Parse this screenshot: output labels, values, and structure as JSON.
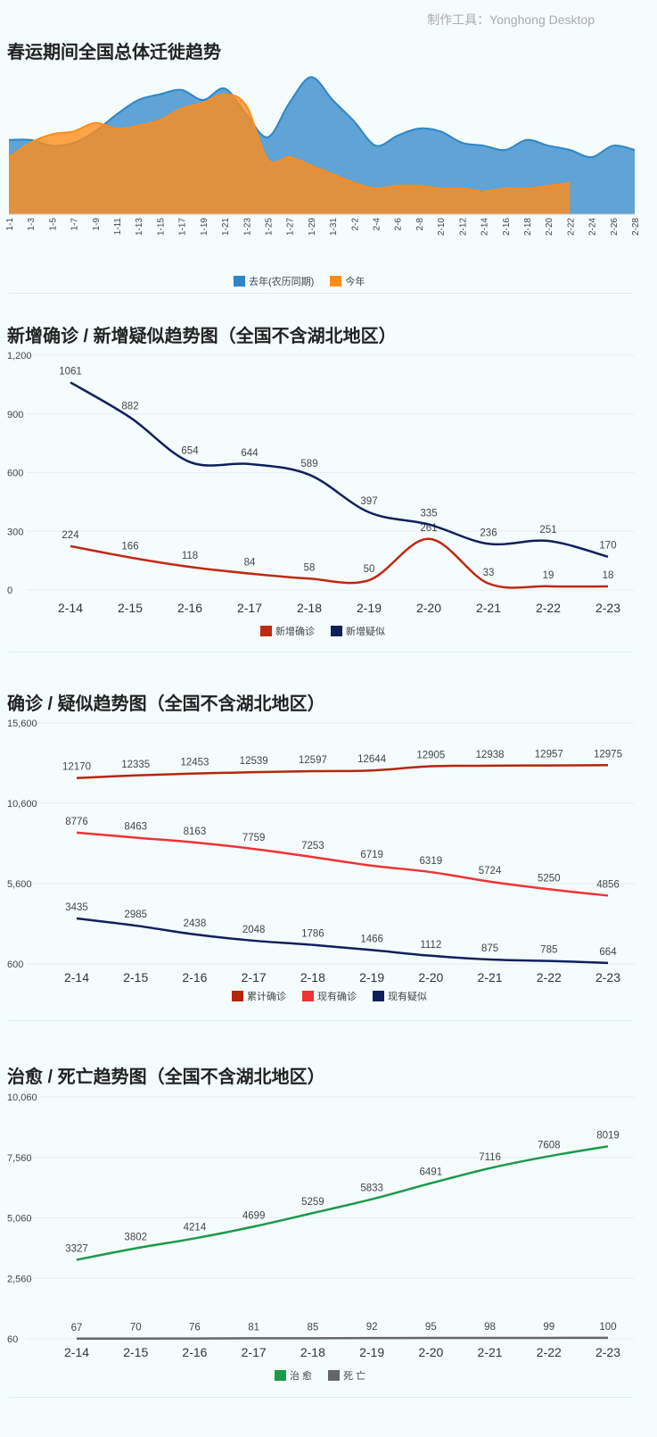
{
  "credit": "制作工具：Yonghong Desktop",
  "charts": [
    {
      "title": "春运期间全国总体迁徙趋势",
      "chart_data": {
        "type": "area",
        "categories": [
          "1-1",
          "1-3",
          "1-5",
          "1-7",
          "1-9",
          "1-11",
          "1-13",
          "1-15",
          "1-17",
          "1-19",
          "1-21",
          "1-23",
          "1-25",
          "1-27",
          "1-29",
          "1-31",
          "2-2",
          "2-4",
          "2-6",
          "2-8",
          "2-10",
          "2-12",
          "2-14",
          "2-16",
          "2-18",
          "2-20",
          "2-22",
          "2-24",
          "2-26",
          "2-28"
        ],
        "series": [
          {
            "name": "去年(农历同期)",
            "color": "#2e86c8",
            "values": [
              52,
              52,
              48,
              50,
              58,
              70,
              80,
              84,
              87,
              80,
              88,
              70,
              54,
              78,
              96,
              80,
              65,
              48,
              55,
              60,
              58,
              50,
              48,
              45,
              52,
              48,
              45,
              40,
              48,
              45
            ]
          },
          {
            "name": "今年",
            "color": "#ff8c1a",
            "values": [
              40,
              50,
              56,
              58,
              64,
              60,
              62,
              66,
              74,
              78,
              84,
              76,
              38,
              40,
              34,
              28,
              22,
              18,
              20,
              20,
              18,
              18,
              16,
              18,
              18,
              20,
              22,
              null,
              null,
              null
            ]
          }
        ]
      },
      "legend": [
        "去年(农历同期)",
        "今年"
      ]
    },
    {
      "title": "新增确诊 / 新增疑似趋势图（全国不含湖北地区）",
      "chart_data": {
        "type": "line",
        "categories": [
          "2-14",
          "2-15",
          "2-16",
          "2-17",
          "2-18",
          "2-19",
          "2-20",
          "2-21",
          "2-22",
          "2-23"
        ],
        "yticks": [
          "1,200",
          "900",
          "600",
          "300",
          "0"
        ],
        "ylim": [
          0,
          1200
        ],
        "series": [
          {
            "name": "新增确诊",
            "color": "#c0280f",
            "values": [
              224,
              166,
              118,
              84,
              58,
              50,
              261,
              33,
              19,
              18
            ]
          },
          {
            "name": "新增疑似",
            "color": "#0f1f5c",
            "values": [
              1061,
              882,
              654,
              644,
              589,
              397,
              335,
              236,
              251,
              170
            ]
          }
        ]
      },
      "legend": [
        "新增确诊",
        "新增疑似"
      ]
    },
    {
      "title": "确诊 / 疑似趋势图（全国不含湖北地区）",
      "chart_data": {
        "type": "line",
        "categories": [
          "2-14",
          "2-15",
          "2-16",
          "2-17",
          "2-18",
          "2-19",
          "2-20",
          "2-21",
          "2-22",
          "2-23"
        ],
        "yticks": [
          "15,600",
          "10,600",
          "5,600",
          "600"
        ],
        "ylim": [
          600,
          15600
        ],
        "series": [
          {
            "name": "累计确诊",
            "color": "#b5260c",
            "values": [
              12170,
              12335,
              12453,
              12539,
              12597,
              12644,
              12905,
              12938,
              12957,
              12975
            ]
          },
          {
            "name": "现有确诊",
            "color": "#ee3333",
            "values": [
              8776,
              8463,
              8163,
              7759,
              7253,
              6719,
              6319,
              5724,
              5250,
              4856
            ]
          },
          {
            "name": "现有疑似",
            "color": "#0f1f5c",
            "values": [
              3435,
              2985,
              2438,
              2048,
              1786,
              1466,
              1112,
              875,
              785,
              664
            ]
          }
        ]
      },
      "legend": [
        "累计确诊",
        "现有确诊",
        "现有疑似"
      ]
    },
    {
      "title": "治愈 / 死亡趋势图（全国不含湖北地区）",
      "chart_data": {
        "type": "line",
        "categories": [
          "2-14",
          "2-15",
          "2-16",
          "2-17",
          "2-18",
          "2-19",
          "2-20",
          "2-21",
          "2-22",
          "2-23"
        ],
        "yticks": [
          "10,060",
          "7,560",
          "5,060",
          "2,560",
          "60"
        ],
        "ylim": [
          60,
          10060
        ],
        "series": [
          {
            "name": "治愈",
            "color": "#1a9a48",
            "values": [
              3327,
              3802,
              4214,
              4699,
              5259,
              5833,
              6491,
              7116,
              7608,
              8019
            ]
          },
          {
            "name": "死亡",
            "color": "#666666",
            "values": [
              67,
              70,
              76,
              81,
              85,
              92,
              95,
              98,
              99,
              100
            ]
          }
        ]
      },
      "legend": [
        "治 愈",
        "死 亡"
      ]
    }
  ]
}
